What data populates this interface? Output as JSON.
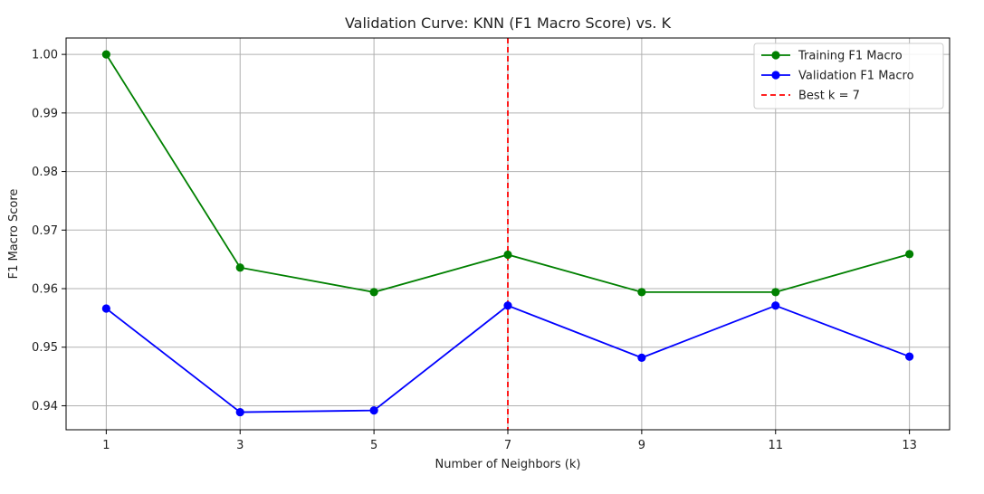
{
  "chart_data": {
    "type": "line",
    "title": "Validation Curve: KNN (F1 Macro Score) vs. K",
    "xlabel": "Number of Neighbors (k)",
    "ylabel": "F1 Macro Score",
    "x": [
      1,
      3,
      5,
      7,
      9,
      11,
      13
    ],
    "x_tick_labels": [
      "1",
      "3",
      "5",
      "7",
      "9",
      "11",
      "13"
    ],
    "y_ticks": [
      0.94,
      0.95,
      0.96,
      0.97,
      0.98,
      0.99,
      1.0
    ],
    "y_tick_labels": [
      "0.94",
      "0.95",
      "0.96",
      "0.97",
      "0.98",
      "0.99",
      "1.00"
    ],
    "xlim": [
      0.4,
      13.6
    ],
    "ylim": [
      0.9359,
      1.0028
    ],
    "grid": true,
    "legend_position": "top-right",
    "series": [
      {
        "name": "Training F1 Macro",
        "color": "#008000",
        "marker": "circle",
        "values": [
          1.0,
          0.9636,
          0.9594,
          0.9658,
          0.9594,
          0.9594,
          0.9659
        ]
      },
      {
        "name": "Validation F1 Macro",
        "color": "#0000ff",
        "marker": "circle",
        "values": [
          0.9566,
          0.9389,
          0.9392,
          0.9571,
          0.9482,
          0.9571,
          0.9484
        ]
      }
    ],
    "reference_lines": [
      {
        "name": "Best k = 7",
        "orientation": "vertical",
        "x": 7,
        "color": "#ff0000",
        "style": "dashed"
      }
    ]
  }
}
